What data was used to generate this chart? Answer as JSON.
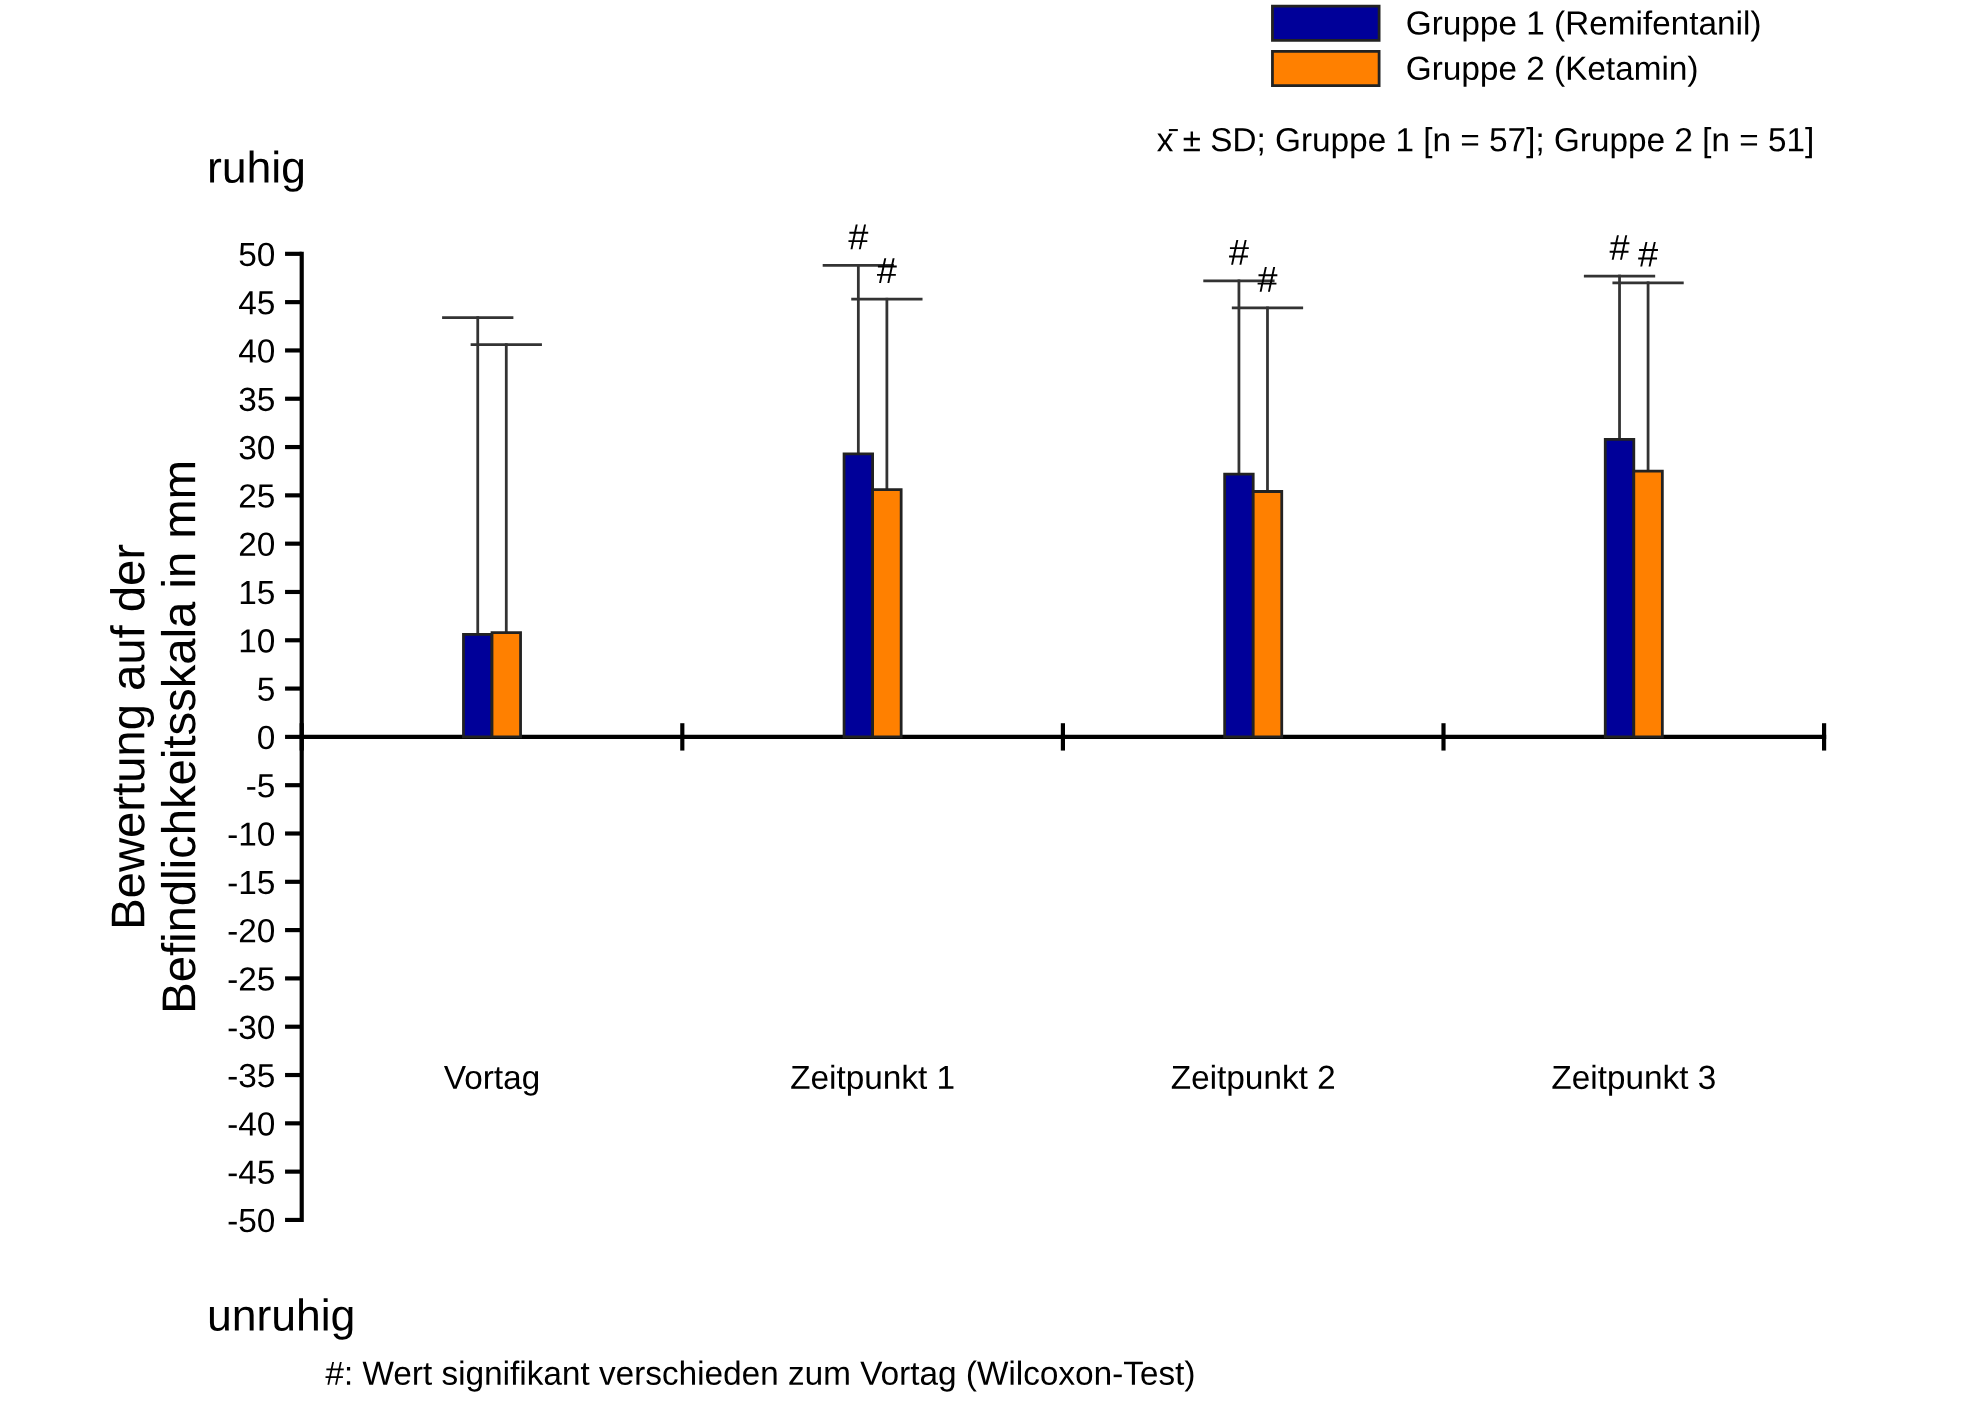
{
  "chart_data": {
    "type": "bar",
    "ylabel": "Bewertung auf der\nBefindlichkeitsskala in mm",
    "categories": [
      "Vortag",
      "Zeitpunkt 1",
      "Zeitpunkt 2",
      "Zeitpunkt 3"
    ],
    "series": [
      {
        "name": "Gruppe 1 (Remifentanil)",
        "color": "#000099",
        "values": [
          10.6,
          29.3,
          27.2,
          30.8
        ],
        "errors": [
          [
            10.6,
            43.4
          ],
          [
            29.3,
            48.8
          ],
          [
            27.2,
            47.2
          ],
          [
            30.8,
            47.7
          ]
        ]
      },
      {
        "name": "Gruppe 2 (Ketamin)",
        "color": "#ff8000",
        "values": [
          10.8,
          25.6,
          25.4,
          27.5
        ],
        "errors": [
          [
            10.8,
            40.6
          ],
          [
            25.6,
            45.3
          ],
          [
            25.4,
            44.4
          ],
          [
            27.5,
            47.0
          ]
        ]
      }
    ],
    "ylim": [
      -50,
      50
    ],
    "yticks": [
      -50,
      -45,
      -40,
      -35,
      -30,
      -25,
      -20,
      -15,
      -10,
      -5,
      0,
      5,
      10,
      15,
      20,
      25,
      30,
      35,
      40,
      45,
      50
    ],
    "legend": "top right",
    "annotations": [
      "#",
      "#",
      "#",
      "#",
      "#",
      "#",
      "x̄ ± SD; Gruppe 1 [n = 57]; Gruppe 2 [n = 51]",
      "ruhig",
      "unruhig",
      "#: Wert signifikant verschieden zum Vortag (Wilcoxon-Test)"
    ]
  }
}
